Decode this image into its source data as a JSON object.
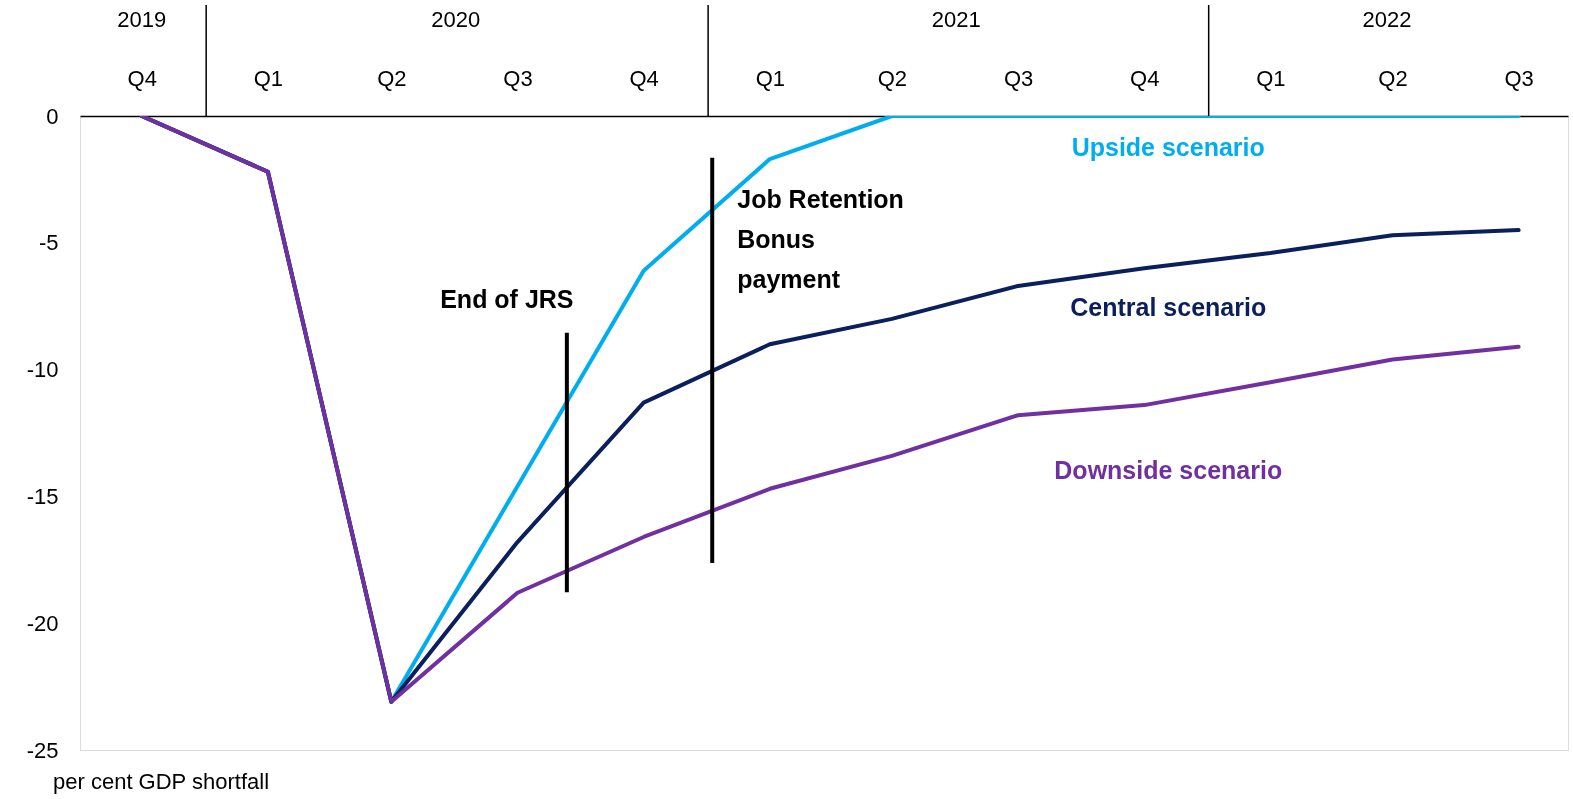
{
  "chart_data": {
    "type": "line",
    "x": [
      "2019-11-15",
      "2020-02-15",
      "2020-05-15",
      "2020-08-15",
      "2020-11-15",
      "2021-02-15",
      "2021-05-15",
      "2021-08-15",
      "2021-11-15",
      "2022-02-15",
      "2022-05-15",
      "2022-08-15"
    ],
    "xlim": [
      "2019-10-01",
      "2022-09-20"
    ],
    "xticks": [
      {
        "value": "2019-11-15",
        "label": "Q4"
      },
      {
        "value": "2020-02-15",
        "label": "Q1"
      },
      {
        "value": "2020-05-15",
        "label": "Q2"
      },
      {
        "value": "2020-08-15",
        "label": "Q3"
      },
      {
        "value": "2020-11-15",
        "label": "Q4"
      },
      {
        "value": "2021-02-15",
        "label": "Q1"
      },
      {
        "value": "2021-05-15",
        "label": "Q2"
      },
      {
        "value": "2021-08-15",
        "label": "Q3"
      },
      {
        "value": "2021-11-15",
        "label": "Q4"
      },
      {
        "value": "2022-02-15",
        "label": "Q1"
      },
      {
        "value": "2022-05-15",
        "label": "Q2"
      },
      {
        "value": "2022-08-15",
        "label": "Q3"
      }
    ],
    "x2lim": [
      "2019-10-01",
      "2022-09-20"
    ],
    "x2ticks": [
      {
        "value": "2019-11-15",
        "label": "2019"
      },
      {
        "value": "2020-07-01",
        "label": "2020"
      },
      {
        "value": "2021-07-01",
        "label": "2021"
      },
      {
        "value": "2022-05-11",
        "label": "2022"
      }
    ],
    "ylim": [
      -25,
      0
    ],
    "yticks": [
      0,
      -5,
      -10,
      -15,
      -20,
      -25
    ],
    "ylabel": "per cent GDP shortfall",
    "series": [
      {
        "name": "Upside scenario",
        "color": "#00aeef",
        "values": [
          0,
          -2.2,
          -23.1,
          -14.6,
          -6.1,
          -1.7,
          0,
          0,
          0,
          0,
          0,
          0
        ]
      },
      {
        "name": "Central scenario",
        "color": "#0a1f5c",
        "values": [
          0,
          -2.2,
          -23.1,
          -16.8,
          -11.3,
          -9.0,
          -8.0,
          -6.7,
          -6.0,
          -5.4,
          -4.7,
          -4.5
        ]
      },
      {
        "name": "Downside scenario",
        "color": "#7030a0",
        "values": [
          0,
          -2.2,
          -23.1,
          -18.8,
          -16.6,
          -14.7,
          -13.4,
          -11.8,
          -11.4,
          -10.5,
          -9.6,
          -9.1
        ]
      }
    ],
    "ref_lines": [
      {
        "axis": "x",
        "value": "2020-09-20",
        "label": "End of JRS",
        "color": "#000000"
      },
      {
        "axis": "x",
        "value": "2021-01-04",
        "label": "Job Retention\nBonus\npayment",
        "color": "#000000"
      }
    ],
    "grid": false,
    "legend": false
  }
}
